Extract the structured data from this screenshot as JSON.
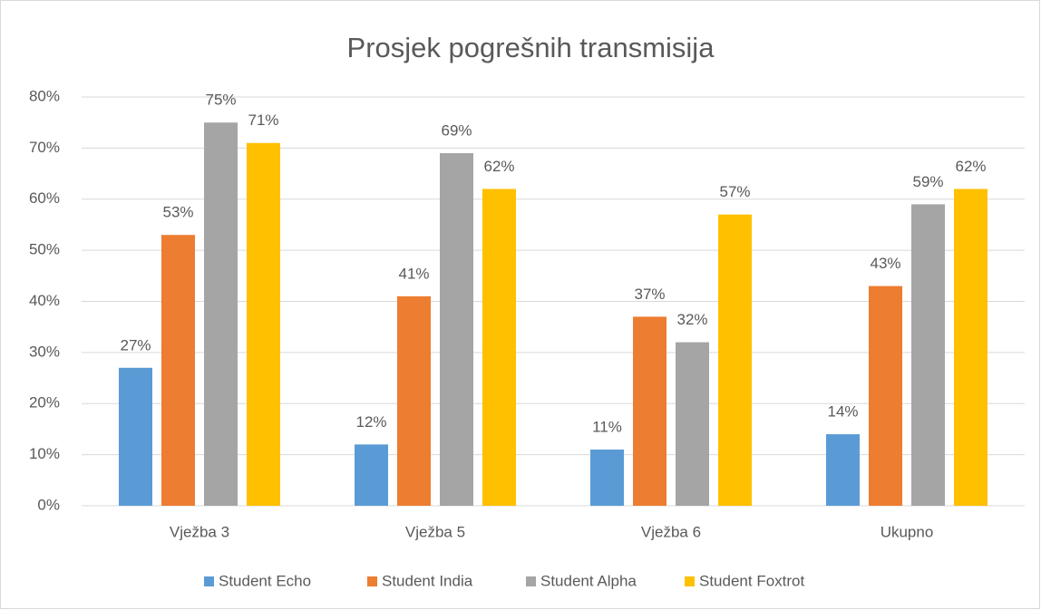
{
  "chart_data": {
    "type": "bar",
    "title": "Prosjek pogrešnih transmisija",
    "categories": [
      "Vježba 3",
      "Vježba 5",
      "Vježba 6",
      "Ukupno"
    ],
    "series": [
      {
        "name": "Student Echo",
        "color": "#5b9bd5",
        "values": [
          27,
          12,
          11,
          14
        ],
        "value_labels": [
          "27%",
          "12%",
          "11%",
          "14%"
        ]
      },
      {
        "name": "Student India",
        "color": "#ed7d31",
        "values": [
          53,
          41,
          37,
          43
        ],
        "value_labels": [
          "53%",
          "41%",
          "37%",
          "43%"
        ]
      },
      {
        "name": "Student Alpha",
        "color": "#a5a5a5",
        "values": [
          75,
          69,
          32,
          59
        ],
        "value_labels": [
          "75%",
          "69%",
          "32%",
          "59%"
        ]
      },
      {
        "name": "Student Foxtrot",
        "color": "#ffc000",
        "values": [
          71,
          62,
          57,
          62
        ],
        "value_labels": [
          "71%",
          "62%",
          "57%",
          "62%"
        ]
      }
    ],
    "ylim": [
      0,
      80
    ],
    "yticks": [
      {
        "value": 0,
        "label": "0%"
      },
      {
        "value": 10,
        "label": "10%"
      },
      {
        "value": 20,
        "label": "20%"
      },
      {
        "value": 30,
        "label": "30%"
      },
      {
        "value": 40,
        "label": "40%"
      },
      {
        "value": 50,
        "label": "50%"
      },
      {
        "value": 60,
        "label": "60%"
      },
      {
        "value": 70,
        "label": "70%"
      },
      {
        "value": 80,
        "label": "80%"
      }
    ],
    "grid": true,
    "legend": "bottom"
  }
}
